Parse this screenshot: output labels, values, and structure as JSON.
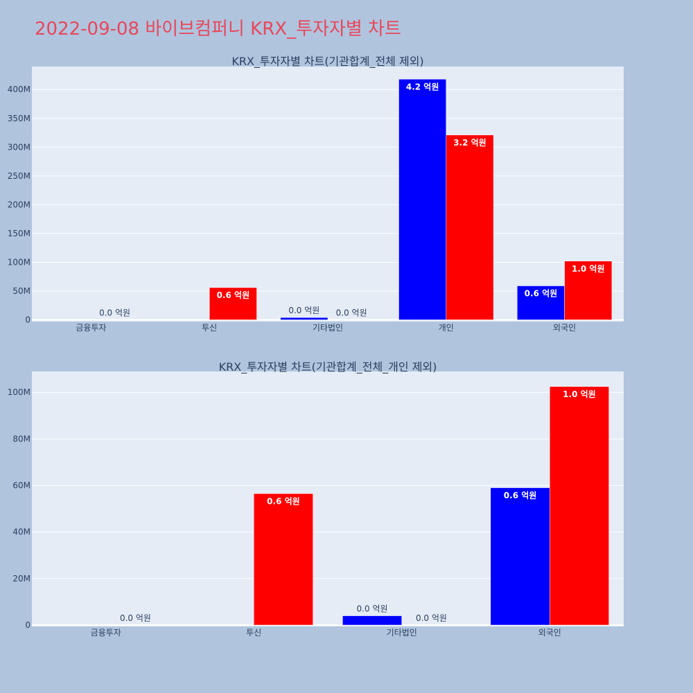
{
  "page_title": "2022-09-08 바이브컴퍼니 KRX_투자자별 차트",
  "colors": {
    "page_bg": "#b0c4de",
    "plot_bg": "#e5ecf6",
    "title": "#e8475b",
    "series_buy": "#0000ff",
    "series_sell": "#ff0000",
    "text": "#2a3f5f",
    "grid": "#ffffff"
  },
  "chart_data": [
    {
      "type": "bar",
      "title": "KRX_투자자별 차트(기관합계_전체 제외)",
      "categories": [
        "금융투자",
        "투신",
        "기타법인",
        "개인",
        "외국인"
      ],
      "series": [
        {
          "color": "#0000ff",
          "values": [
            0,
            0,
            4000000,
            418000000,
            59000000
          ],
          "labels": [
            "",
            "",
            "0.0 억원",
            "4.2 억원",
            "0.6 억원"
          ]
        },
        {
          "color": "#ff0000",
          "values": [
            0,
            56000000,
            0,
            321000000,
            102000000
          ],
          "labels": [
            "0.0 억원",
            "0.6 억원",
            "0.0 억원",
            "3.2 억원",
            "1.0 억원"
          ]
        }
      ],
      "yticks": [
        0,
        50000000,
        100000000,
        150000000,
        200000000,
        250000000,
        300000000,
        350000000,
        400000000
      ],
      "ytick_labels": [
        "0",
        "50M",
        "100M",
        "150M",
        "200M",
        "250M",
        "300M",
        "350M",
        "400M"
      ],
      "ylim": [
        -3000000,
        440000000
      ],
      "grid": true,
      "legend": "none"
    },
    {
      "type": "bar",
      "title": "KRX_투자자별 차트(기관합계_전체_개인 제외)",
      "categories": [
        "금융투자",
        "투신",
        "기타법인",
        "외국인"
      ],
      "series": [
        {
          "color": "#0000ff",
          "values": [
            0,
            0,
            4000000,
            59000000
          ],
          "labels": [
            "",
            "",
            "0.0 억원",
            "0.6 억원"
          ]
        },
        {
          "color": "#ff0000",
          "values": [
            0,
            56500000,
            0,
            102500000
          ],
          "labels": [
            "0.0 억원",
            "0.6 억원",
            "0.0 억원",
            "1.0 억원"
          ]
        }
      ],
      "yticks": [
        0,
        20000000,
        40000000,
        60000000,
        80000000,
        100000000
      ],
      "ytick_labels": [
        "0",
        "20M",
        "40M",
        "60M",
        "80M",
        "100M"
      ],
      "ylim": [
        -600000,
        109000000
      ],
      "grid": true,
      "legend": "none"
    }
  ]
}
